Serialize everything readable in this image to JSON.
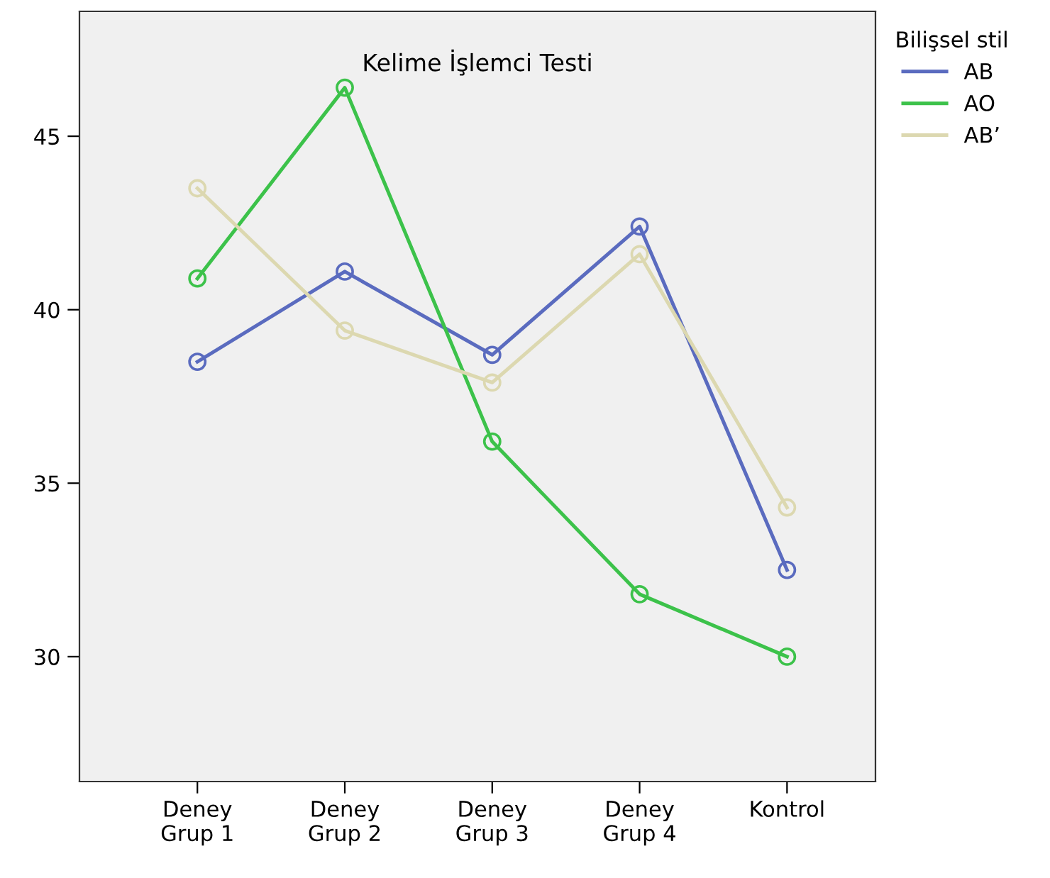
{
  "chart_data": {
    "type": "line",
    "title": "Kelime İşlemci Testi",
    "legend_title": "Bilişsel stil",
    "categories": [
      "Deney\nGrup 1",
      "Deney\nGrup 2",
      "Deney\nGrup 3",
      "Deney\nGrup 4",
      "Kontrol"
    ],
    "series": [
      {
        "name": "AB",
        "color": "#5a6bbf",
        "values": [
          38.5,
          41.1,
          38.7,
          42.4,
          32.5
        ]
      },
      {
        "name": "AO",
        "color": "#3cc24a",
        "values": [
          40.9,
          46.4,
          36.2,
          31.8,
          30.0
        ]
      },
      {
        "name": "AB’",
        "color": "#dcd8b0",
        "values": [
          43.5,
          39.4,
          37.9,
          41.6,
          34.3
        ]
      }
    ],
    "ylim": [
      26.4,
      48.6
    ],
    "yticks": [
      30,
      35,
      40,
      45
    ],
    "grid": false,
    "legend": "top right",
    "marker": "circle",
    "line_style": "solid"
  }
}
